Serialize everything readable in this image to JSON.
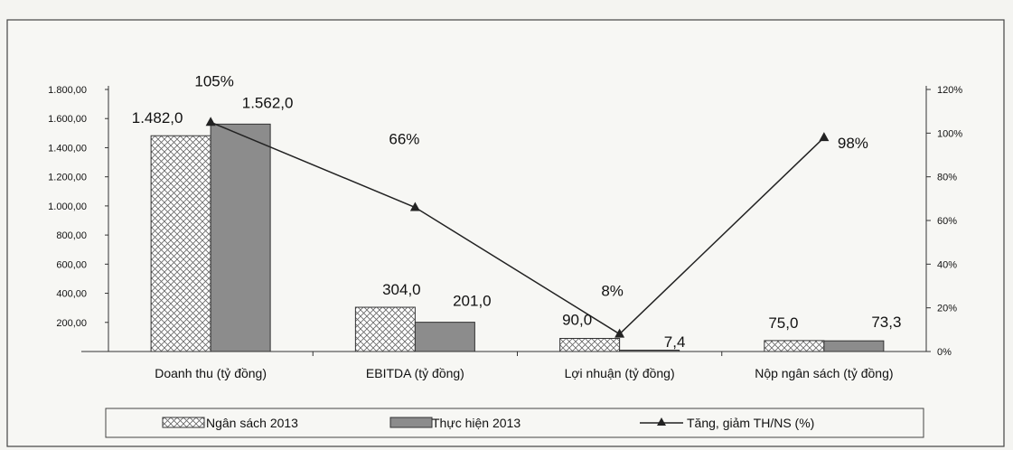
{
  "chart_data": {
    "type": "bar",
    "categories": [
      "Doanh thu (tỷ đồng)",
      "EBITDA (tỷ đồng)",
      "Lợi nhuận (tỷ đồng)",
      "Nộp ngân sách (tỷ đồng)"
    ],
    "series": [
      {
        "name": "Ngân sách 2013",
        "type": "bar",
        "axis": "left",
        "values": [
          1482.0,
          304.0,
          90.0,
          75.0
        ],
        "labels": [
          "1.482,0",
          "304,0",
          "90,0",
          "75,0"
        ],
        "pattern": "crosshatch",
        "color": "#ffffff"
      },
      {
        "name": "Thực hiện 2013",
        "type": "bar",
        "axis": "left",
        "values": [
          1562.0,
          201.0,
          7.4,
          73.3
        ],
        "labels": [
          "1.562,0",
          "201,0",
          "7,4",
          "73,3"
        ],
        "color": "#8c8c8c"
      },
      {
        "name": "Tăng, giảm TH/NS  (%)",
        "type": "line",
        "axis": "right",
        "values": [
          105,
          66,
          8,
          98
        ],
        "labels": [
          "105%",
          "66%",
          "8%",
          "98%"
        ],
        "marker": "triangle",
        "color": "#222222"
      }
    ],
    "y_left": {
      "range": [
        0,
        1800
      ],
      "ticks": [
        200,
        400,
        600,
        800,
        1000,
        1200,
        1400,
        1600,
        1800
      ],
      "tick_labels": [
        "200,00",
        "400,00",
        "600,00",
        "800,00",
        "1.000,00",
        "1.200,00",
        "1.400,00",
        "1.600,00",
        "1.800,00"
      ]
    },
    "y_right": {
      "range": [
        0,
        120
      ],
      "ticks": [
        0,
        20,
        40,
        60,
        80,
        100,
        120
      ],
      "tick_labels": [
        "0%",
        "20%",
        "40%",
        "60%",
        "80%",
        "100%",
        "120%"
      ]
    },
    "title": "",
    "xlabel": "",
    "ylabel": "",
    "grid": false,
    "legend_position": "bottom"
  }
}
